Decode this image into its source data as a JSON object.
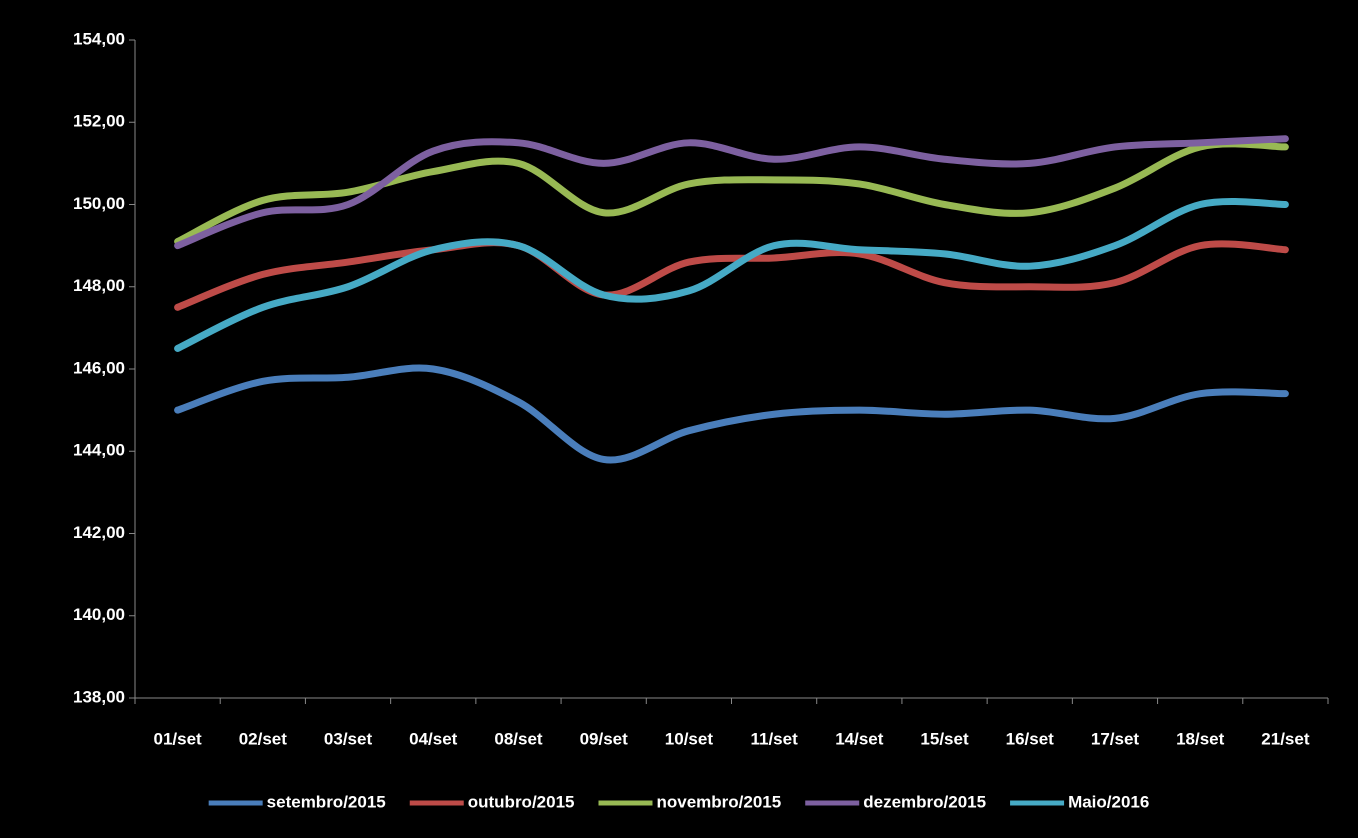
{
  "chart_data": {
    "type": "line",
    "categories": [
      "01/set",
      "02/set",
      "03/set",
      "04/set",
      "08/set",
      "09/set",
      "10/set",
      "11/set",
      "14/set",
      "15/set",
      "16/set",
      "17/set",
      "18/set",
      "21/set"
    ],
    "series": [
      {
        "name": "setembro/2015",
        "color": "#4a7ebb",
        "values": [
          145.0,
          145.7,
          145.8,
          146.0,
          145.2,
          143.8,
          144.5,
          144.9,
          145.0,
          144.9,
          145.0,
          144.8,
          145.4,
          145.4
        ]
      },
      {
        "name": "outubro/2015",
        "color": "#be4b48",
        "values": [
          147.5,
          148.3,
          148.6,
          148.9,
          149.0,
          147.8,
          148.6,
          148.7,
          148.8,
          148.1,
          148.0,
          148.1,
          149.0,
          148.9
        ]
      },
      {
        "name": "novembro/2015",
        "color": "#98b954",
        "values": [
          149.1,
          150.1,
          150.3,
          150.8,
          151.0,
          149.8,
          150.5,
          150.6,
          150.5,
          150.0,
          149.8,
          150.4,
          151.4,
          151.4
        ]
      },
      {
        "name": "dezembro/2015",
        "color": "#7d60a0",
        "values": [
          149.0,
          149.8,
          150.0,
          151.3,
          151.5,
          151.0,
          151.5,
          151.1,
          151.4,
          151.1,
          151.0,
          151.4,
          151.5,
          151.6
        ]
      },
      {
        "name": "Maio/2016",
        "color": "#46aac5",
        "values": [
          146.5,
          147.5,
          148.0,
          148.9,
          149.0,
          147.8,
          147.9,
          149.0,
          148.9,
          148.8,
          148.5,
          149.0,
          150.0,
          150.0
        ]
      }
    ],
    "ylim": [
      138,
      154
    ],
    "yticks": [
      {
        "value": 138,
        "label": "138,00"
      },
      {
        "value": 140,
        "label": "140,00"
      },
      {
        "value": 142,
        "label": "142,00"
      },
      {
        "value": 144,
        "label": "144,00"
      },
      {
        "value": 146,
        "label": "146,00"
      },
      {
        "value": 148,
        "label": "148,00"
      },
      {
        "value": 150,
        "label": "150,00"
      },
      {
        "value": 152,
        "label": "152,00"
      },
      {
        "value": 154,
        "label": "154,00"
      }
    ],
    "legend": "bottom"
  }
}
